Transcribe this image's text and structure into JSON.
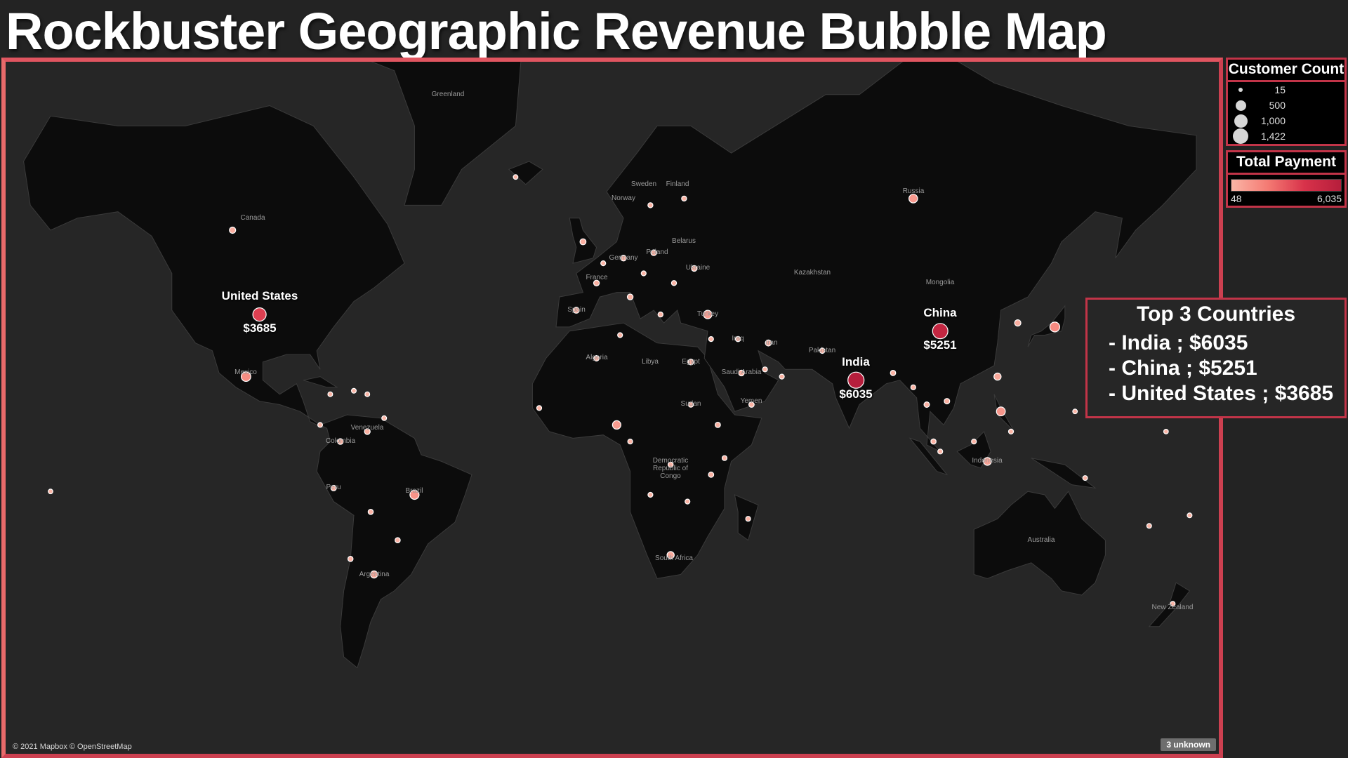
{
  "title": "Rockbuster Geographic Revenue Bubble Map",
  "attribution": "© 2021 Mapbox © OpenStreetMap",
  "unknown_badge": "3 unknown",
  "legend_size": {
    "title": "Customer Count",
    "entries": [
      {
        "label": "15",
        "value": 15
      },
      {
        "label": "500",
        "value": 500
      },
      {
        "label": "1,000",
        "value": 1000
      },
      {
        "label": "1,422",
        "value": 1422
      }
    ]
  },
  "legend_color": {
    "title": "Total Payment",
    "min_label": "48",
    "max_label": "6,035",
    "colors": [
      "#fbb5a6",
      "#f47a73",
      "#d8324a",
      "#b61e3c"
    ]
  },
  "top3": {
    "title": "Top 3 Countries",
    "items": [
      "- India ; $6035",
      "- China ; $5251",
      "- United States ; $3685"
    ]
  },
  "colors": {
    "land": "#0c0c0c",
    "ocean": "#262626",
    "border": "#3a3a3a",
    "accent": "#c23448",
    "bubble_low": "#f47a73",
    "bubble_high": "#c51f3e"
  },
  "country_labels": [
    "Greenland",
    "Canada",
    "Sweden",
    "Finland",
    "Norway",
    "Russia",
    "Poland",
    "Belarus",
    "Germany",
    "Ukraine",
    "France",
    "Spain",
    "Turkey",
    "Kazakhstan",
    "Mongolia",
    "Iraq",
    "Iran",
    "Algeria",
    "Libya",
    "Egypt",
    "Saudi Arabia",
    "Pakistan",
    "Yemen",
    "Sudan",
    "Venezuela",
    "Colombia",
    "Peru",
    "Brazil",
    "Argentina",
    "Democratic Republic of Congo",
    "South Africa",
    "Indonesia",
    "Australia",
    "New Zealand",
    "Mexico",
    "United States",
    "China",
    "India"
  ],
  "highlighted": [
    {
      "country": "United States",
      "label_name": "United States",
      "label_value": "$3685"
    },
    {
      "country": "China",
      "label_name": "China",
      "label_value": "$5251"
    },
    {
      "country": "India",
      "label_name": "India",
      "label_value": "$6035"
    }
  ],
  "bubbles": [
    {
      "lon": -98,
      "lat": 39,
      "payment": 3685
    },
    {
      "lon": 104,
      "lat": 35,
      "payment": 5251
    },
    {
      "lon": 79,
      "lat": 22,
      "payment": 6035
    },
    {
      "lon": 96,
      "lat": 61,
      "payment": 1000
    },
    {
      "lon": 138,
      "lat": 36,
      "payment": 1500
    },
    {
      "lon": 122,
      "lat": 13,
      "payment": 1100
    },
    {
      "lon": -102,
      "lat": 23,
      "payment": 1400
    },
    {
      "lon": -52,
      "lat": -12,
      "payment": 1200
    },
    {
      "lon": 8,
      "lat": 9,
      "payment": 900
    },
    {
      "lon": 35,
      "lat": 39,
      "payment": 900
    },
    {
      "lon": 118,
      "lat": -2,
      "payment": 700
    },
    {
      "lon": -64,
      "lat": -34,
      "payment": 500
    },
    {
      "lon": 24,
      "lat": -29,
      "payment": 500
    },
    {
      "lon": 121,
      "lat": 23,
      "payment": 500
    },
    {
      "lon": -106,
      "lat": 56,
      "payment": 300
    },
    {
      "lon": 127,
      "lat": 37,
      "payment": 300
    },
    {
      "lon": -2,
      "lat": 54,
      "payment": 250
    },
    {
      "lon": -4,
      "lat": 40,
      "payment": 250
    },
    {
      "lon": 53,
      "lat": 32,
      "payment": 250
    },
    {
      "lon": 10,
      "lat": 51,
      "payment": 200
    },
    {
      "lon": 2,
      "lat": 46,
      "payment": 200
    },
    {
      "lon": 19,
      "lat": 52,
      "payment": 200
    },
    {
      "lon": 31,
      "lat": 49,
      "payment": 200
    },
    {
      "lon": 12,
      "lat": 43,
      "payment": 200
    },
    {
      "lon": 45,
      "lat": 24,
      "payment": 200
    },
    {
      "lon": 30,
      "lat": 27,
      "payment": 200
    },
    {
      "lon": -66,
      "lat": 7,
      "payment": 200
    },
    {
      "lon": -74,
      "lat": 4,
      "payment": 200
    },
    {
      "lon": -76,
      "lat": -10,
      "payment": 150
    },
    {
      "lon": 100,
      "lat": 15,
      "payment": 150
    },
    {
      "lon": 106,
      "lat": 16,
      "payment": 150
    },
    {
      "lon": 2,
      "lat": 28,
      "payment": 150
    },
    {
      "lon": 48,
      "lat": 15,
      "payment": 120
    },
    {
      "lon": 69,
      "lat": 30,
      "payment": 120
    },
    {
      "lon": 90,
      "lat": 24,
      "payment": 120
    },
    {
      "lon": 38,
      "lat": 9,
      "payment": 120
    },
    {
      "lon": 36,
      "lat": -6,
      "payment": 120
    },
    {
      "lon": 24,
      "lat": -3,
      "payment": 100
    },
    {
      "lon": 44,
      "lat": 33,
      "payment": 100
    },
    {
      "lon": 102,
      "lat": 4,
      "payment": 100
    },
    {
      "lon": -57,
      "lat": -25,
      "payment": 100
    },
    {
      "lon": -65,
      "lat": -17,
      "payment": 100
    },
    {
      "lon": -71,
      "lat": -30,
      "payment": 100
    },
    {
      "lon": 30,
      "lat": 15,
      "payment": 100
    },
    {
      "lon": 28,
      "lat": 61,
      "payment": 90
    },
    {
      "lon": 18,
      "lat": 60,
      "payment": 90
    },
    {
      "lon": 25,
      "lat": 46,
      "payment": 90
    },
    {
      "lon": 21,
      "lat": 39,
      "payment": 90
    },
    {
      "lon": 4,
      "lat": 50,
      "payment": 80
    },
    {
      "lon": 16,
      "lat": 48,
      "payment": 80
    },
    {
      "lon": 9,
      "lat": 34,
      "payment": 80
    },
    {
      "lon": 57,
      "lat": 23,
      "payment": 80
    },
    {
      "lon": 52,
      "lat": 25,
      "payment": 80
    },
    {
      "lon": 36,
      "lat": 33,
      "payment": 80
    },
    {
      "lon": -15,
      "lat": 14,
      "payment": 80
    },
    {
      "lon": 12,
      "lat": 4,
      "payment": 80
    },
    {
      "lon": 18,
      "lat": -12,
      "payment": 80
    },
    {
      "lon": 29,
      "lat": -14,
      "payment": 80
    },
    {
      "lon": 47,
      "lat": -19,
      "payment": 80
    },
    {
      "lon": 40,
      "lat": -1,
      "payment": 80
    },
    {
      "lon": 96,
      "lat": 20,
      "payment": 80
    },
    {
      "lon": 114,
      "lat": 4,
      "payment": 80
    },
    {
      "lon": 125,
      "lat": 7,
      "payment": 80
    },
    {
      "lon": 104,
      "lat": 1,
      "payment": 80
    },
    {
      "lon": -77,
      "lat": 18,
      "payment": 60
    },
    {
      "lon": -70,
      "lat": 19,
      "payment": 60
    },
    {
      "lon": -61,
      "lat": 11,
      "payment": 60
    },
    {
      "lon": -66,
      "lat": 18,
      "payment": 60
    },
    {
      "lon": -80,
      "lat": 9,
      "payment": 60
    },
    {
      "lon": 147,
      "lat": -7,
      "payment": 60
    },
    {
      "lon": 166,
      "lat": -21,
      "payment": 60
    },
    {
      "lon": 178,
      "lat": -18,
      "payment": 60
    },
    {
      "lon": -160,
      "lat": -11,
      "payment": 48
    },
    {
      "lon": 144,
      "lat": 13,
      "payment": 48
    },
    {
      "lon": -22,
      "lat": 64,
      "payment": 48
    },
    {
      "lon": 173,
      "lat": -41,
      "payment": 60
    },
    {
      "lon": 171,
      "lat": 7,
      "payment": 48
    }
  ]
}
